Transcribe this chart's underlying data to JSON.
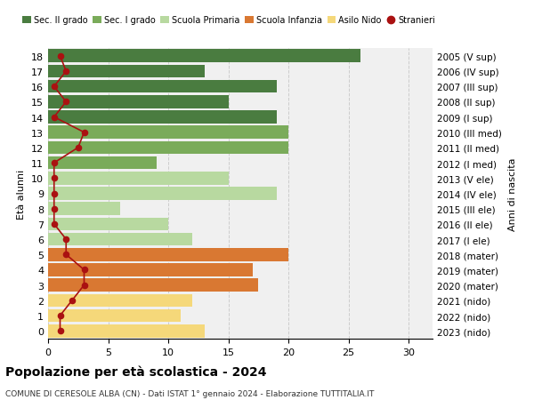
{
  "ages": [
    18,
    17,
    16,
    15,
    14,
    13,
    12,
    11,
    10,
    9,
    8,
    7,
    6,
    5,
    4,
    3,
    2,
    1,
    0
  ],
  "right_labels": [
    "2005 (V sup)",
    "2006 (IV sup)",
    "2007 (III sup)",
    "2008 (II sup)",
    "2009 (I sup)",
    "2010 (III med)",
    "2011 (II med)",
    "2012 (I med)",
    "2013 (V ele)",
    "2014 (IV ele)",
    "2015 (III ele)",
    "2016 (II ele)",
    "2017 (I ele)",
    "2018 (mater)",
    "2019 (mater)",
    "2020 (mater)",
    "2021 (nido)",
    "2022 (nido)",
    "2023 (nido)"
  ],
  "bar_values": [
    26,
    13,
    19,
    15,
    19,
    20,
    20,
    9,
    15,
    19,
    6,
    10,
    12,
    20,
    17,
    17.5,
    12,
    11,
    13
  ],
  "bar_colors": [
    "#4a7c40",
    "#4a7c40",
    "#4a7c40",
    "#4a7c40",
    "#4a7c40",
    "#7aab5a",
    "#7aab5a",
    "#7aab5a",
    "#b8d9a0",
    "#b8d9a0",
    "#b8d9a0",
    "#b8d9a0",
    "#b8d9a0",
    "#d97832",
    "#d97832",
    "#d97832",
    "#f5d87a",
    "#f5d87a",
    "#f5d87a"
  ],
  "stranieri_values": [
    1,
    1.5,
    0.5,
    1.5,
    0.5,
    3,
    2.5,
    0.5,
    0.5,
    0.5,
    0.5,
    0.5,
    1.5,
    1.5,
    3,
    3,
    2,
    1,
    1
  ],
  "legend_labels": [
    "Sec. II grado",
    "Sec. I grado",
    "Scuola Primaria",
    "Scuola Infanzia",
    "Asilo Nido",
    "Stranieri"
  ],
  "legend_colors": [
    "#4a7c40",
    "#7aab5a",
    "#b8d9a0",
    "#d97832",
    "#f5d87a",
    "#aa1111"
  ],
  "title": "Popolazione per età scolastica - 2024",
  "subtitle": "COMUNE DI CERESOLE ALBA (CN) - Dati ISTAT 1° gennaio 2024 - Elaborazione TUTTITALIA.IT",
  "ylabel": "Età alunni",
  "right_ylabel": "Anni di nascita",
  "xlim": [
    0,
    32
  ],
  "xticks": [
    0,
    5,
    10,
    15,
    20,
    25,
    30
  ],
  "background_color": "#ffffff",
  "plot_bg_color": "#f0f0f0",
  "grid_color": "#cccccc"
}
